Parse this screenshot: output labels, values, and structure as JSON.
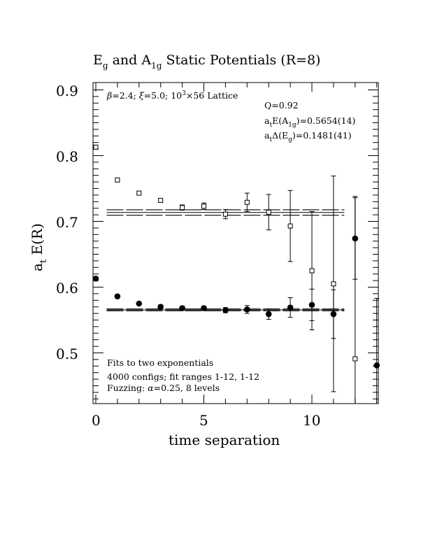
{
  "chart_data": {
    "type": "scatter",
    "title_parts": {
      "a": "E",
      "a_sub": "g",
      "b": " and A",
      "b_sub": "1g",
      "c": " Static Potentials (R=8)"
    },
    "xlabel": "time separation",
    "ylabel": {
      "main": "a",
      "sub": "t",
      "rest": " E(R)"
    },
    "xlim": [
      -0.2,
      12.9
    ],
    "ylim": [
      0.42,
      0.91
    ],
    "xticks": [
      0,
      5,
      10
    ],
    "xtick_labels": [
      "0",
      "5",
      "10"
    ],
    "yticks": [
      0.5,
      0.6,
      0.7,
      0.8,
      0.9
    ],
    "ytick_labels": [
      "0.5",
      "0.6",
      "0.7",
      "0.8",
      "0.9"
    ],
    "annotations": {
      "lattice": {
        "beta": "β",
        "rest1": "=2.4; ",
        "xi": "ξ",
        "rest2": "=5.0; 10",
        "sup": "3",
        "rest3": "×56 Lattice"
      },
      "q": "Q=0.92",
      "eA": {
        "a": "a",
        "s1": "t",
        "b": "E(A",
        "s2": "1g",
        "c": ")=0.5654(14)"
      },
      "dE": {
        "a": "a",
        "s1": "t",
        "b": "Δ(E",
        "s2": "g",
        "c": ")=0.1481(41)"
      },
      "fits": "Fits to two exponentials",
      "configs": "4000 configs; fit ranges 1-12, 1-12",
      "fuzz": {
        "a": "Fuzzing: ",
        "alpha": "α",
        "b": "=0.25, 8 levels"
      }
    },
    "series": [
      {
        "name": "Eg",
        "marker": "open-square",
        "points": [
          {
            "x": 0,
            "y": 0.813,
            "err": 0.003
          },
          {
            "x": 1,
            "y": 0.763,
            "err": 0.003
          },
          {
            "x": 2,
            "y": 0.743,
            "err": 0.003
          },
          {
            "x": 3,
            "y": 0.732,
            "err": 0.003
          },
          {
            "x": 4,
            "y": 0.721,
            "err": 0.004
          },
          {
            "x": 5,
            "y": 0.723,
            "err": 0.005
          },
          {
            "x": 6,
            "y": 0.711,
            "err": 0.007
          },
          {
            "x": 7,
            "y": 0.729,
            "err": 0.014
          },
          {
            "x": 8,
            "y": 0.714,
            "err": 0.027
          },
          {
            "x": 9,
            "y": 0.693,
            "err": 0.054
          },
          {
            "x": 10,
            "y": 0.625,
            "err": 0.09
          },
          {
            "x": 11,
            "y": 0.605,
            "err": 0.164
          },
          {
            "x": 12,
            "y": 0.491,
            "err": 0.247
          }
        ]
      },
      {
        "name": "A1g",
        "marker": "filled-circle",
        "points": [
          {
            "x": 0,
            "y": 0.613,
            "err": 0.001
          },
          {
            "x": 1,
            "y": 0.586,
            "err": 0.002
          },
          {
            "x": 2,
            "y": 0.575,
            "err": 0.002
          },
          {
            "x": 3,
            "y": 0.57,
            "err": 0.003
          },
          {
            "x": 4,
            "y": 0.568,
            "err": 0.003
          },
          {
            "x": 5,
            "y": 0.568,
            "err": 0.003
          },
          {
            "x": 6,
            "y": 0.565,
            "err": 0.004
          },
          {
            "x": 7,
            "y": 0.566,
            "err": 0.006
          },
          {
            "x": 8,
            "y": 0.559,
            "err": 0.008
          },
          {
            "x": 9,
            "y": 0.569,
            "err": 0.015
          },
          {
            "x": 10,
            "y": 0.573,
            "err": 0.024
          },
          {
            "x": 11,
            "y": 0.559,
            "err": 0.037
          },
          {
            "x": 12,
            "y": 0.674,
            "err": 0.062
          },
          {
            "x": 13,
            "y": 0.481,
            "err": 0.102
          }
        ]
      }
    ],
    "fit_bands": [
      {
        "name": "Eg fit",
        "center": 0.7135,
        "half_width": 0.0041,
        "x_range": [
          0.5,
          11.5
        ]
      },
      {
        "name": "A1g fit",
        "center": 0.5654,
        "half_width": 0.0014,
        "x_range": [
          0.5,
          11.5
        ]
      }
    ]
  }
}
